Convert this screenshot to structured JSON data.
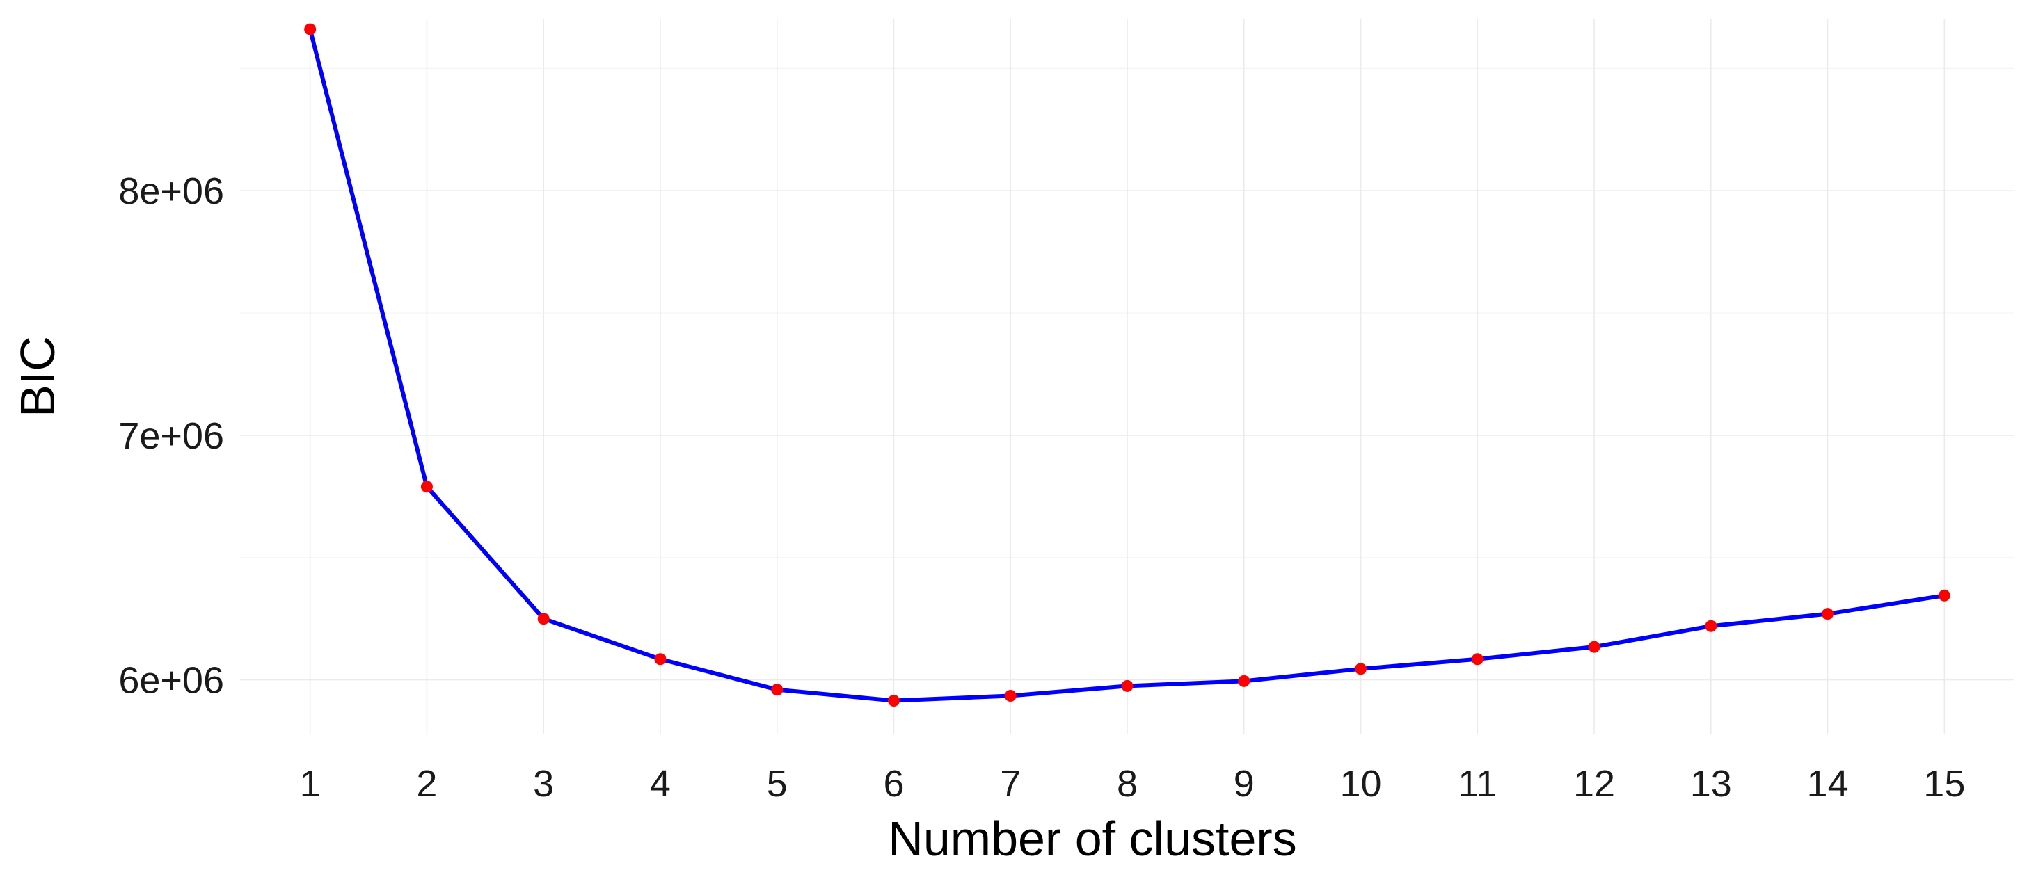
{
  "chart_data": {
    "type": "line",
    "title": "",
    "xlabel": "Number of clusters",
    "ylabel": "BIC",
    "x": [
      1,
      2,
      3,
      4,
      5,
      6,
      7,
      8,
      9,
      10,
      11,
      12,
      13,
      14,
      15
    ],
    "x_tick_labels": [
      "1",
      "2",
      "3",
      "4",
      "5",
      "6",
      "7",
      "8",
      "9",
      "10",
      "11",
      "12",
      "13",
      "14",
      "15"
    ],
    "y_ticks": [
      6000000,
      7000000,
      8000000
    ],
    "y_tick_labels": [
      "6e+06",
      "7e+06",
      "8e+06"
    ],
    "ylim": [
      5780000,
      8700000
    ],
    "xlim": [
      0.4,
      15.6
    ],
    "grid": true,
    "legend": "none",
    "series": [
      {
        "values": [
          8660000,
          6790000,
          6250000,
          6085000,
          5960000,
          5915000,
          5935000,
          5975000,
          5995000,
          6045000,
          6085000,
          6135000,
          6220000,
          6270000,
          6345000
        ],
        "line_color": "#0000ff",
        "point_color": "#ff0000"
      }
    ]
  }
}
